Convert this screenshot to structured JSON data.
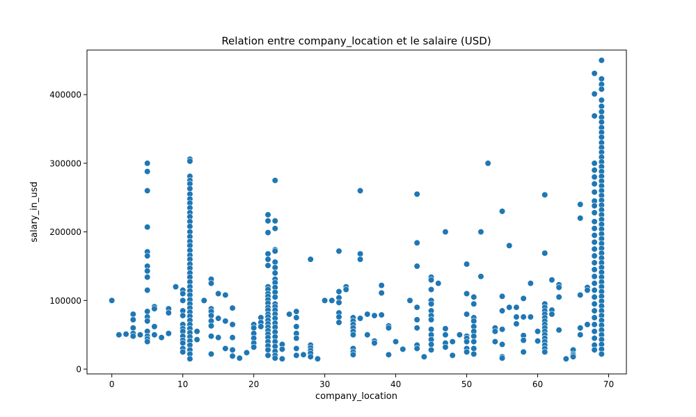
{
  "chart_data": {
    "type": "scatter",
    "title": "Relation entre company_location et le salaire (USD)",
    "xlabel": "company_location",
    "ylabel": "salary_in_usd",
    "xlim": [
      -3.5,
      72.5
    ],
    "ylim": [
      -7000,
      465000
    ],
    "xticks": [
      0,
      10,
      20,
      30,
      40,
      50,
      60,
      70
    ],
    "yticks": [
      0,
      100000,
      200000,
      300000,
      400000
    ],
    "grid": false,
    "legend": "none",
    "point_color": "#1f77b4",
    "points_by_x": [
      {
        "x": 0,
        "y": [
          100000
        ]
      },
      {
        "x": 1,
        "y": [
          50000
        ]
      },
      {
        "x": 2,
        "y": [
          51000
        ]
      },
      {
        "x": 3,
        "y": [
          80000,
          72000,
          60000,
          52000,
          48000
        ]
      },
      {
        "x": 4,
        "y": [
          50000
        ]
      },
      {
        "x": 5,
        "y": [
          300000,
          288000,
          260000,
          207000,
          171000,
          165000,
          150000,
          143000,
          134000,
          115000,
          84000,
          76000,
          70000,
          55000,
          48000,
          44000,
          40000
        ]
      },
      {
        "x": 6,
        "y": [
          91000,
          88000,
          62000,
          50000
        ]
      },
      {
        "x": 7,
        "y": [
          46000
        ]
      },
      {
        "x": 8,
        "y": [
          88000,
          82000,
          52000
        ]
      },
      {
        "x": 9,
        "y": [
          120000
        ]
      },
      {
        "x": 10,
        "y": [
          115000,
          110000,
          100000,
          85000,
          78000,
          65000,
          59000,
          55000,
          48000,
          42000,
          38000,
          30000,
          25000
        ]
      },
      {
        "x": 11,
        "y": [
          306000,
          303000,
          281000,
          275000,
          270000,
          263000,
          255000,
          248000,
          242000,
          235000,
          228000,
          222000,
          215000,
          208000,
          200000,
          193000,
          186000,
          180000,
          173000,
          166000,
          160000,
          153000,
          147000,
          140000,
          134000,
          127000,
          120000,
          114000,
          108000,
          101000,
          95000,
          89000,
          83000,
          77000,
          71000,
          65000,
          59000,
          53000,
          47000,
          41000,
          35000,
          28000,
          22000,
          15000
        ]
      },
      {
        "x": 12,
        "y": [
          55000,
          43000
        ]
      },
      {
        "x": 13,
        "y": [
          100000
        ]
      },
      {
        "x": 14,
        "y": [
          131000,
          125000,
          88000,
          84000,
          78000,
          70000,
          63000,
          48000,
          22000
        ]
      },
      {
        "x": 15,
        "y": [
          110000,
          74000,
          46000
        ]
      },
      {
        "x": 16,
        "y": [
          108000,
          70000,
          30000
        ]
      },
      {
        "x": 17,
        "y": [
          89000,
          65000,
          46000,
          28000,
          19000
        ]
      },
      {
        "x": 18,
        "y": [
          16000
        ]
      },
      {
        "x": 19,
        "y": [
          24000
        ]
      },
      {
        "x": 20,
        "y": [
          65000,
          60000,
          52000,
          45000,
          38000,
          32000
        ]
      },
      {
        "x": 21,
        "y": [
          75000,
          68000,
          62000
        ]
      },
      {
        "x": 22,
        "y": [
          225000,
          216000,
          199000,
          168000,
          160000,
          151000,
          120000,
          116000,
          110000,
          106000,
          101000,
          96000,
          90000,
          86000,
          80000,
          76000,
          71000,
          66000,
          61000,
          56000,
          51000,
          46000,
          40000,
          34000,
          28000,
          20000
        ]
      },
      {
        "x": 23,
        "y": [
          275000,
          216000,
          205000,
          174000,
          172000,
          156000,
          148000,
          140000,
          131000,
          126000,
          119000,
          112000,
          105000,
          95000,
          91000,
          86000,
          80000,
          74000,
          67000,
          61000,
          54000,
          47000,
          40000,
          33000,
          26000,
          20000,
          16000
        ]
      },
      {
        "x": 24,
        "y": [
          36000,
          29000,
          15000
        ]
      },
      {
        "x": 25,
        "y": [
          80000
        ]
      },
      {
        "x": 26,
        "y": [
          84000,
          75000,
          62000,
          52000,
          45000,
          30000,
          20000
        ]
      },
      {
        "x": 27,
        "y": [
          21000
        ]
      },
      {
        "x": 28,
        "y": [
          160000,
          35000,
          31000,
          27000,
          23000,
          18000
        ]
      },
      {
        "x": 29,
        "y": [
          15000
        ]
      },
      {
        "x": 30,
        "y": [
          100000
        ]
      },
      {
        "x": 31,
        "y": [
          100000
        ]
      },
      {
        "x": 32,
        "y": [
          172000,
          113000,
          104000,
          97000,
          82000,
          76000,
          68000
        ]
      },
      {
        "x": 33,
        "y": [
          120000,
          116000
        ]
      },
      {
        "x": 34,
        "y": [
          75000,
          70000,
          65000,
          60000,
          55000,
          50000,
          30000,
          25000,
          21000
        ]
      },
      {
        "x": 35,
        "y": [
          260000,
          168000,
          160000,
          74000
        ]
      },
      {
        "x": 36,
        "y": [
          80000,
          50000
        ]
      },
      {
        "x": 37,
        "y": [
          78000,
          41000,
          38000
        ]
      },
      {
        "x": 38,
        "y": [
          122000,
          111000,
          79000
        ]
      },
      {
        "x": 39,
        "y": [
          63000,
          60000,
          21000
        ]
      },
      {
        "x": 40,
        "y": [
          40000
        ]
      },
      {
        "x": 41,
        "y": [
          29000
        ]
      },
      {
        "x": 42,
        "y": [
          100000
        ]
      },
      {
        "x": 43,
        "y": [
          255000,
          184000,
          150000,
          90000,
          72000,
          60000,
          35000,
          30000
        ]
      },
      {
        "x": 44,
        "y": [
          18000
        ]
      },
      {
        "x": 45,
        "y": [
          134000,
          130000,
          116000,
          100000,
          95000,
          85000,
          78000,
          72000,
          58000,
          50000,
          43000,
          36000,
          28000
        ]
      },
      {
        "x": 46,
        "y": [
          125000
        ]
      },
      {
        "x": 47,
        "y": [
          200000,
          59000,
          50000,
          38000,
          32000
        ]
      },
      {
        "x": 48,
        "y": [
          40000,
          20000
        ]
      },
      {
        "x": 49,
        "y": [
          50000
        ]
      },
      {
        "x": 50,
        "y": [
          153000,
          110000,
          80000,
          48000,
          45000,
          40000,
          30000,
          25000
        ]
      },
      {
        "x": 51,
        "y": [
          105000,
          95000,
          75000,
          70000,
          62000,
          55000,
          48000,
          40000,
          30000,
          22000
        ]
      },
      {
        "x": 52,
        "y": [
          200000,
          135000
        ]
      },
      {
        "x": 53,
        "y": [
          300000
        ]
      },
      {
        "x": 54,
        "y": [
          60000,
          55000,
          40000
        ]
      },
      {
        "x": 55,
        "y": [
          230000,
          106000,
          85000,
          58000,
          36000,
          18000,
          16000
        ]
      },
      {
        "x": 56,
        "y": [
          180000,
          90000
        ]
      },
      {
        "x": 57,
        "y": [
          90000,
          76000,
          66000
        ]
      },
      {
        "x": 58,
        "y": [
          103000,
          76000,
          49000,
          42000,
          25000
        ]
      },
      {
        "x": 59,
        "y": [
          125000,
          76000
        ]
      },
      {
        "x": 60,
        "y": [
          55000,
          41000
        ]
      },
      {
        "x": 61,
        "y": [
          254000,
          169000,
          95000,
          90000,
          85000,
          80000,
          75000,
          70000,
          65000,
          60000,
          55000,
          50000,
          45000,
          40000,
          35000,
          30000,
          25000
        ]
      },
      {
        "x": 62,
        "y": [
          130000,
          86000,
          80000
        ]
      },
      {
        "x": 63,
        "y": [
          123000,
          119000,
          105000,
          57000
        ]
      },
      {
        "x": 64,
        "y": [
          15000
        ]
      },
      {
        "x": 65,
        "y": [
          28000,
          22000,
          20000,
          18000
        ]
      },
      {
        "x": 66,
        "y": [
          240000,
          220000,
          108000,
          60000,
          50000
        ]
      },
      {
        "x": 67,
        "y": [
          119000,
          115000,
          65000
        ]
      },
      {
        "x": 68,
        "y": [
          431000,
          401000,
          369000,
          300000,
          290000,
          280000,
          270000,
          258000,
          245000,
          238000,
          228000,
          215000,
          205000,
          195000,
          185000,
          175000,
          165000,
          155000,
          145000,
          135000,
          125000,
          115000,
          105000,
          95000,
          85000,
          75000,
          65000,
          55000,
          45000,
          35000,
          28000
        ]
      },
      {
        "x": 69,
        "y": [
          450000,
          423000,
          415000,
          408000,
          392000,
          383000,
          375000,
          367000,
          360000,
          352000,
          345000,
          338000,
          330000,
          323000,
          316000,
          309000,
          302000,
          295000,
          288000,
          281000,
          274000,
          267000,
          260000,
          253000,
          246000,
          239000,
          232000,
          225000,
          218000,
          211000,
          204000,
          197000,
          190000,
          183000,
          176000,
          169000,
          162000,
          155000,
          148000,
          141000,
          134000,
          127000,
          120000,
          113000,
          106000,
          99000,
          92000,
          85000,
          78000,
          71000,
          64000,
          57000,
          50000,
          43000,
          36000,
          29000,
          22000
        ]
      }
    ]
  }
}
